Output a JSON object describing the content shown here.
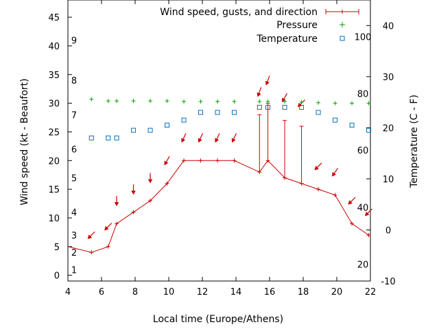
{
  "chart_data": {
    "type": "line",
    "title": "",
    "xlabel": "Local time (Europe/Athens)",
    "ylabel": "Wind speed (kt - Beaufort)",
    "y2label": "Temperature (C - F)",
    "xlim": [
      4,
      22
    ],
    "ylim": [
      -1,
      48
    ],
    "y2lim": [
      -10,
      45
    ],
    "x_ticks": [
      "4",
      "6",
      "8",
      "10",
      "12",
      "14",
      "16",
      "18",
      "20",
      "22"
    ],
    "y_ticks": [
      "0",
      "5",
      "10",
      "15",
      "20",
      "25",
      "30",
      "35",
      "40",
      "45"
    ],
    "y2_ticks": [
      "-10",
      "0",
      "10",
      "20",
      "30",
      "40"
    ],
    "beaufort_labels": [
      {
        "label": "1",
        "kt": 1
      },
      {
        "label": "2",
        "kt": 4
      },
      {
        "label": "3",
        "kt": 7
      },
      {
        "label": "4",
        "kt": 11
      },
      {
        "label": "5",
        "kt": 17
      },
      {
        "label": "6",
        "kt": 22
      },
      {
        "label": "7",
        "kt": 28
      },
      {
        "label": "8",
        "kt": 34
      },
      {
        "label": "9",
        "kt": 41
      }
    ],
    "fahrenheit_labels": [
      {
        "label": "20",
        "c": -6.7
      },
      {
        "label": "40",
        "c": 4.4
      },
      {
        "label": "60",
        "c": 15.6
      },
      {
        "label": "80",
        "c": 26.7
      },
      {
        "label": "100",
        "c": 37.8
      }
    ],
    "legend": {
      "position": "top-right",
      "entries": [
        "Wind speed, gusts, and direction",
        "Pressure",
        "Temperature"
      ]
    },
    "colors": {
      "wind": "#cc0000",
      "pressure": "#00a000",
      "temperature": "#0070c0"
    },
    "series": [
      {
        "name": "Wind speed, gusts, and direction",
        "x": [
          4.0,
          5.4,
          6.4,
          6.9,
          7.9,
          8.9,
          9.9,
          10.9,
          11.9,
          12.9,
          13.9,
          15.4,
          15.9,
          16.9,
          17.9,
          18.9,
          19.9,
          20.9,
          21.9,
          22.0
        ],
        "y": [
          5,
          4,
          5,
          9,
          11,
          13,
          16,
          20,
          20,
          20,
          20,
          18,
          20,
          17,
          16,
          15,
          14,
          9,
          7,
          7
        ],
        "gusts": [
          null,
          null,
          null,
          null,
          null,
          null,
          null,
          null,
          null,
          null,
          null,
          28,
          30,
          27,
          26,
          null,
          null,
          null,
          null,
          null
        ]
      },
      {
        "name": "Pressure",
        "x": [
          5.4,
          6.4,
          6.9,
          7.9,
          8.9,
          9.9,
          10.9,
          11.9,
          12.9,
          13.9,
          15.4,
          15.9,
          16.9,
          17.9,
          18.9,
          19.9,
          20.9,
          21.9
        ],
        "y": [
          30.7,
          30.4,
          30.4,
          30.4,
          30.4,
          30.4,
          30.3,
          30.3,
          30.3,
          30.3,
          30.3,
          30.3,
          30.3,
          30.2,
          30.1,
          30.0,
          30.0,
          30.0
        ]
      },
      {
        "name": "Temperature",
        "x": [
          5.4,
          6.4,
          6.9,
          7.9,
          8.9,
          9.9,
          10.9,
          11.9,
          12.9,
          13.9,
          15.4,
          15.9,
          16.9,
          17.9,
          18.9,
          19.9,
          20.9,
          21.9
        ],
        "y_deg": [
          18,
          18,
          18,
          19.5,
          19.5,
          20.5,
          21.5,
          23,
          23,
          23,
          24,
          24,
          24,
          24,
          23,
          21.5,
          20.5,
          19.5
        ]
      }
    ],
    "wind_direction_arrows": {
      "x": [
        5.4,
        6.4,
        6.9,
        7.9,
        8.9,
        9.9,
        10.9,
        11.9,
        12.9,
        13.9,
        15.4,
        15.9,
        16.9,
        17.9,
        18.9,
        19.9,
        20.9,
        21.9
      ],
      "y": [
        7,
        8.5,
        13,
        15,
        17,
        20,
        24,
        24,
        24,
        24,
        32,
        34,
        31,
        30,
        19,
        18,
        13,
        11
      ],
      "to_deg": [
        225,
        225,
        180,
        180,
        180,
        210,
        205,
        205,
        205,
        205,
        200,
        200,
        210,
        225,
        225,
        215,
        225,
        225
      ]
    }
  }
}
